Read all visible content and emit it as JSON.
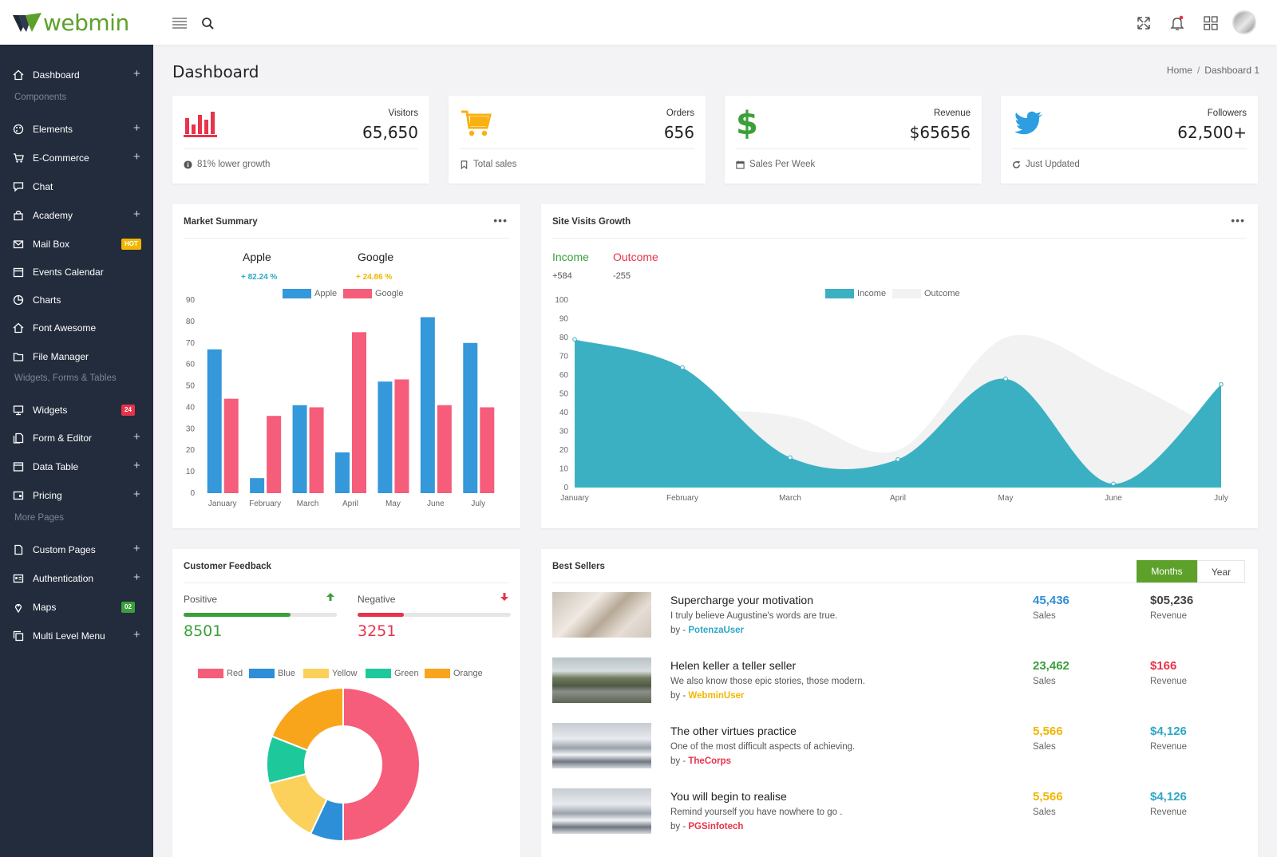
{
  "app": {
    "logo_text": "webmin"
  },
  "colors": {
    "accent_green": "#5da12a",
    "sidebar_bg": "#222c3c",
    "red": "#e8334a",
    "blue": "#3498db",
    "pink": "#f55d7a",
    "teal": "#3bb0c3"
  },
  "sidebar": {
    "items": [
      {
        "label": "Dashboard",
        "icon": "home-icon",
        "plus": true
      },
      {
        "label": "Elements",
        "icon": "palette-icon",
        "plus": true
      },
      {
        "label": "E-Commerce",
        "icon": "cart-icon",
        "plus": true
      },
      {
        "label": "Chat",
        "icon": "chat-icon"
      },
      {
        "label": "Academy",
        "icon": "bag-icon",
        "plus": true
      },
      {
        "label": "Mail Box",
        "icon": "mail-icon",
        "badge": "HOT",
        "badge_color": "#f1b600"
      },
      {
        "label": "Events Calendar",
        "icon": "calendar-icon"
      },
      {
        "label": "Charts",
        "icon": "pie-icon"
      },
      {
        "label": "Font Awesome",
        "icon": "home-icon"
      },
      {
        "label": "File Manager",
        "icon": "folder-icon"
      },
      {
        "label": "Widgets",
        "icon": "monitor-icon",
        "badge": "24",
        "badge_color": "#e8334a"
      },
      {
        "label": "Form & Editor",
        "icon": "files-icon",
        "plus": true
      },
      {
        "label": "Data Table",
        "icon": "table-icon",
        "plus": true
      },
      {
        "label": "Pricing",
        "icon": "price-icon",
        "plus": true
      },
      {
        "label": "Custom Pages",
        "icon": "page-icon",
        "plus": true
      },
      {
        "label": "Authentication",
        "icon": "id-card-icon",
        "plus": true
      },
      {
        "label": "Maps",
        "icon": "pin-icon",
        "badge": "02",
        "badge_color": "#3aa03a"
      },
      {
        "label": "Multi Level Menu",
        "icon": "copy-icon",
        "plus": true
      }
    ],
    "sections": [
      "Components",
      "Widgets, Forms & Tables",
      "More Pages"
    ]
  },
  "page": {
    "title": "Dashboard",
    "breadcrumb": [
      "Home",
      "Dashboard 1"
    ]
  },
  "stats": [
    {
      "label": "Visitors",
      "value": "65,650",
      "footer": "81% lower growth",
      "icon": "bar-chart-icon",
      "footer_icon": "info-icon"
    },
    {
      "label": "Orders",
      "value": "656",
      "footer": "Total sales",
      "icon": "cart-icon",
      "footer_icon": "bookmark-icon"
    },
    {
      "label": "Revenue",
      "value": "$65656",
      "footer": "Sales Per Week",
      "icon": "dollar-icon",
      "footer_icon": "calendar-icon"
    },
    {
      "label": "Followers",
      "value": "62,500+",
      "footer": "Just Updated",
      "icon": "twitter-icon",
      "footer_icon": "refresh-icon"
    }
  ],
  "market": {
    "title": "Market Summary",
    "apple_label": "Apple",
    "apple_change": "+ 82.24 %",
    "google_label": "Google",
    "google_change": "+ 24.86 %"
  },
  "visits": {
    "title": "Site Visits Growth",
    "income_label": "Income",
    "income_value": "+584",
    "outcome_label": "Outcome",
    "outcome_value": "-255"
  },
  "feedback": {
    "title": "Customer Feedback",
    "positive_label": "Positive",
    "positive_value": "8501",
    "positive_level": 0.7,
    "negative_label": "Negative",
    "negative_value": "3251",
    "negative_level": 0.3
  },
  "best_sellers": {
    "title": "Best Sellers",
    "tabs": [
      "Months",
      "Year"
    ],
    "rows": [
      {
        "title": "Supercharge your motivation",
        "desc": "I truly believe Augustine's words are true.",
        "by_prefix": "by - ",
        "author": "PotenzaUser",
        "author_color": "#2fa7c6",
        "sales": "45,436",
        "sales_color": "#2d8fd8",
        "sales_label": "Sales",
        "revenue": "$05,236",
        "revenue_color": "#444",
        "revenue_label": "Revenue",
        "thumb": "laptop-photo"
      },
      {
        "title": "Helen keller a teller seller",
        "desc": "We also know those epic stories, those modern.",
        "by_prefix": "by - ",
        "author": "WebminUser",
        "author_color": "#f1b600",
        "sales": "23,462",
        "sales_color": "#3aa03a",
        "sales_label": "Sales",
        "revenue": "$166",
        "revenue_color": "#e8334a",
        "revenue_label": "Revenue",
        "thumb": "road-photo"
      },
      {
        "title": "The other virtues practice",
        "desc": "One of the most difficult aspects of achieving.",
        "by_prefix": "by - ",
        "author": "TheCorps",
        "author_color": "#e8334a",
        "sales": "5,566",
        "sales_color": "#f1b600",
        "sales_label": "Sales",
        "revenue": "$4,126",
        "revenue_color": "#2fa7c6",
        "revenue_label": "Revenue",
        "thumb": "snow-photo"
      },
      {
        "title": "You will begin to realise",
        "desc": "Remind yourself you have nowhere to go .",
        "by_prefix": "by - ",
        "author": "PGSinfotech",
        "author_color": "#e8334a",
        "sales": "5,566",
        "sales_color": "#f1b600",
        "sales_label": "Sales",
        "revenue": "$4,126",
        "revenue_color": "#2fa7c6",
        "revenue_label": "Revenue",
        "thumb": "snow-photo"
      }
    ]
  },
  "chart_data": [
    {
      "type": "bar",
      "categories": [
        "January",
        "February",
        "March",
        "April",
        "May",
        "June",
        "July"
      ],
      "series": [
        {
          "name": "Apple",
          "color": "#3498db",
          "values": [
            67,
            7,
            41,
            19,
            52,
            82,
            70
          ]
        },
        {
          "name": "Google",
          "color": "#f55d7a",
          "values": [
            44,
            36,
            40,
            75,
            53,
            41,
            40
          ]
        }
      ],
      "ylim": [
        0,
        90
      ],
      "yticks": [
        0,
        10,
        20,
        30,
        40,
        50,
        60,
        70,
        80,
        90
      ],
      "legend": "top",
      "grid": false
    },
    {
      "type": "area",
      "categories": [
        "January",
        "February",
        "March",
        "April",
        "May",
        "June",
        "July"
      ],
      "series": [
        {
          "name": "Income",
          "color": "#3bb0c3",
          "values": [
            79,
            64,
            16,
            15,
            58,
            2,
            55
          ]
        },
        {
          "name": "Outcome",
          "color": "#f2f2f2",
          "values": [
            30,
            40,
            38,
            20,
            80,
            60,
            30
          ]
        }
      ],
      "ylim": [
        0,
        100
      ],
      "yticks": [
        0,
        10,
        20,
        30,
        40,
        50,
        60,
        70,
        80,
        90,
        100
      ],
      "legend": "top",
      "grid": false
    },
    {
      "type": "pie",
      "donut": true,
      "labels": [
        "Red",
        "Blue",
        "Yellow",
        "Green",
        "Orange"
      ],
      "colors": [
        "#f55d7a",
        "#2d8fd8",
        "#fbd15b",
        "#1dc99a",
        "#f9a51c"
      ],
      "values": [
        50,
        7,
        14,
        10,
        19
      ],
      "legend": "top"
    }
  ]
}
